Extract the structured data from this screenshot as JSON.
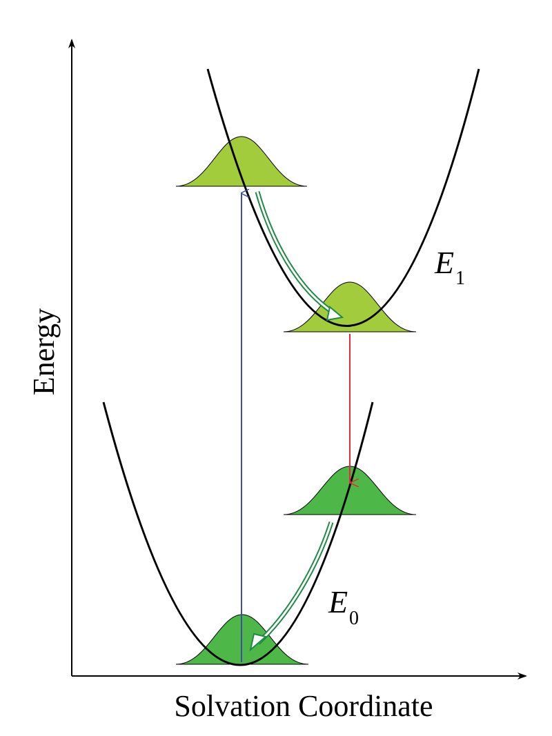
{
  "axes": {
    "xlabel": "Solvation Coordinate",
    "ylabel": "Energy"
  },
  "curves": {
    "excited": {
      "label_main": "E",
      "label_sub": "1"
    },
    "ground": {
      "label_main": "E",
      "label_sub": "0"
    }
  },
  "colors": {
    "axis": "#000000",
    "curve": "#000000",
    "excited_population": "#a3cc3c",
    "ground_population": "#4db848",
    "absorption_arrow": "#3b4fa8",
    "emission_arrow": "#e8283a",
    "relaxation_arrow_fill": "#ffffff",
    "relaxation_arrow_stroke": "#1e8a45"
  },
  "arrows": {
    "absorption": {
      "name": "absorption"
    },
    "emission": {
      "name": "emission"
    },
    "excited_relaxation": {
      "name": "excited-state solvation"
    },
    "ground_relaxation": {
      "name": "ground-state solvation"
    }
  }
}
